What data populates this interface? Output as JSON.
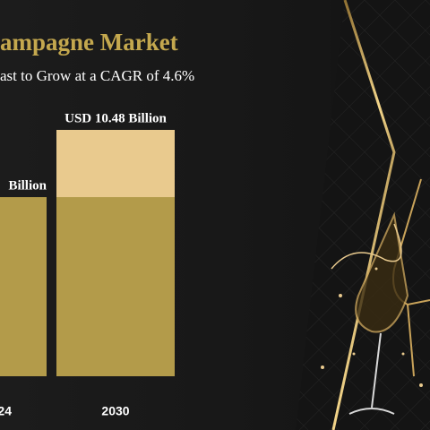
{
  "chart_data": {
    "type": "bar",
    "title": "ampagne Market",
    "subtitle": "ast to Grow at a CAGR of 4.6%",
    "categories": [
      "24",
      "2030"
    ],
    "values": [
      7.62,
      10.48
    ],
    "value_labels": [
      "Billion",
      "USD 10.48 Billion"
    ],
    "color": "#b39b4a",
    "growth_color": "#e9ca8e"
  }
}
